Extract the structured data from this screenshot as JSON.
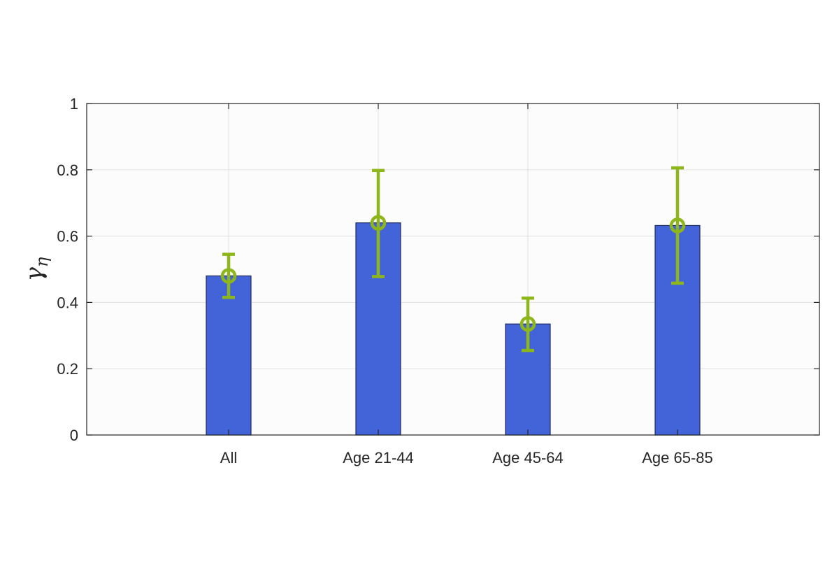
{
  "chart_data": {
    "type": "bar",
    "title": "",
    "xlabel": "",
    "ylabel": "γη",
    "ylabel_main": "γ",
    "ylabel_sub": "η",
    "categories": [
      "All",
      "Age 21-44",
      "Age 45-64",
      "Age 65-85"
    ],
    "values": [
      0.48,
      0.64,
      0.335,
      0.632
    ],
    "error_bars": [
      {
        "center": 0.48,
        "low": 0.415,
        "high": 0.545
      },
      {
        "center": 0.64,
        "low": 0.478,
        "high": 0.798
      },
      {
        "center": 0.335,
        "low": 0.255,
        "high": 0.413
      },
      {
        "center": 0.632,
        "low": 0.458,
        "high": 0.806
      }
    ],
    "ylim": [
      0,
      1
    ],
    "yticks": [
      0,
      0.2,
      0.4,
      0.6,
      0.8,
      1
    ],
    "ytick_labels": [
      "0",
      "0.2",
      "0.4",
      "0.6",
      "0.8",
      "1"
    ],
    "grid": true,
    "colors": {
      "bar_fill": "#4363D8",
      "bar_edge": "#1F2A5C",
      "error_bar": "#8DB61B",
      "axes_background": "#FCFCFC",
      "grid": "#E1E1E1",
      "axis": "#262626"
    }
  }
}
